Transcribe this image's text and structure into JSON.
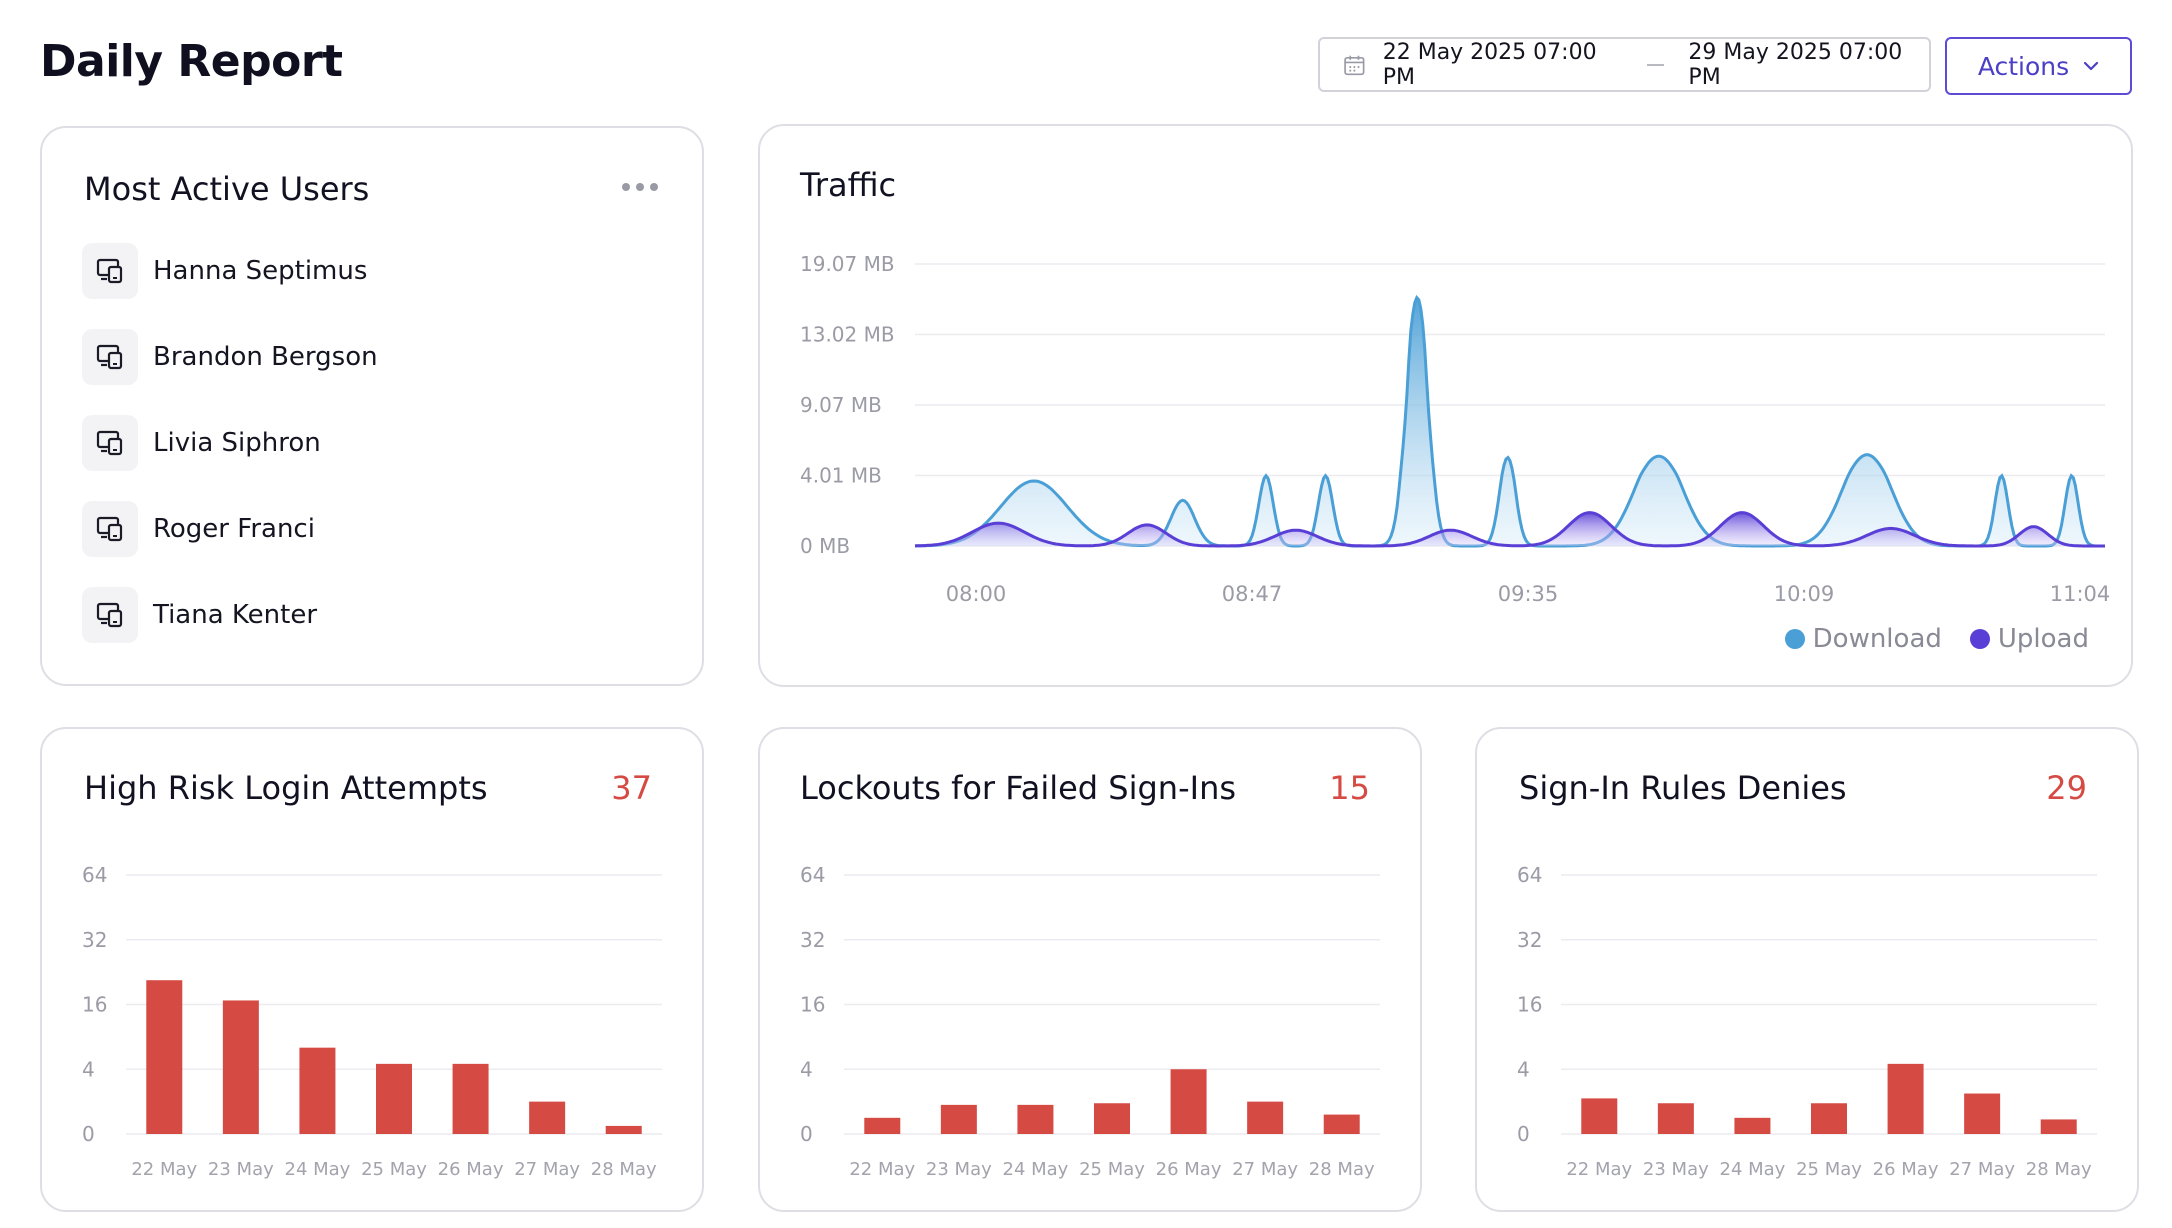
{
  "header": {
    "title": "Daily Report",
    "date_from": "22 May 2025 07:00 PM",
    "date_to": "29 May 2025 07:00 PM",
    "actions_label": "Actions"
  },
  "colors": {
    "accent": "#5b4bd6",
    "download": "#4a9fd6",
    "upload": "#5a3fd6",
    "bar": "#d64a44",
    "count": "#d64a44"
  },
  "most_active_users": {
    "title": "Most Active Users",
    "users": [
      "Hanna Septimus",
      "Brandon Bergson",
      "Livia Siphron",
      "Roger Franci",
      "Tiana Kenter"
    ]
  },
  "traffic": {
    "title": "Traffic",
    "legend": [
      "Download",
      "Upload"
    ]
  },
  "cards": {
    "high_risk": {
      "title": "High Risk Login Attempts",
      "count": "37"
    },
    "lockouts": {
      "title": "Lockouts for Failed Sign-Ins",
      "count": "15"
    },
    "rule_denies": {
      "title": "Sign-In Rules Denies",
      "count": "29"
    }
  },
  "chart_data": [
    {
      "id": "traffic",
      "type": "area",
      "title": "Traffic",
      "y_ticks": [
        "0 MB",
        "4.01 MB",
        "9.07 MB",
        "13.02 MB",
        "19.07 MB"
      ],
      "x_ticks": [
        "08:00",
        "08:47",
        "09:35",
        "10:09",
        "11:04"
      ],
      "legend": "bottom-right",
      "series": [
        {
          "name": "Download",
          "peaks": [
            {
              "x": 0.1,
              "height": 3.7,
              "width": 0.028
            },
            {
              "x": 0.225,
              "height": 2.6,
              "width": 0.01
            },
            {
              "x": 0.295,
              "height": 4.0,
              "width": 0.006
            },
            {
              "x": 0.345,
              "height": 4.0,
              "width": 0.006
            },
            {
              "x": 0.422,
              "height": 16.2,
              "width": 0.0085
            },
            {
              "x": 0.498,
              "height": 5.3,
              "width": 0.0065
            },
            {
              "x": 0.625,
              "height": 5.4,
              "width": 0.02
            },
            {
              "x": 0.8,
              "height": 5.5,
              "width": 0.02
            },
            {
              "x": 0.913,
              "height": 4.0,
              "width": 0.0055
            },
            {
              "x": 0.972,
              "height": 4.0,
              "width": 0.0055
            }
          ]
        },
        {
          "name": "Upload",
          "peaks": [
            {
              "x": 0.07,
              "height": 1.3,
              "width": 0.022
            },
            {
              "x": 0.195,
              "height": 1.2,
              "width": 0.016
            },
            {
              "x": 0.32,
              "height": 0.9,
              "width": 0.018
            },
            {
              "x": 0.45,
              "height": 0.9,
              "width": 0.018
            },
            {
              "x": 0.567,
              "height": 1.9,
              "width": 0.018
            },
            {
              "x": 0.695,
              "height": 1.9,
              "width": 0.018
            },
            {
              "x": 0.82,
              "height": 1.0,
              "width": 0.02
            },
            {
              "x": 0.94,
              "height": 1.1,
              "width": 0.012
            }
          ]
        }
      ]
    },
    {
      "id": "high_risk",
      "type": "bar",
      "title": "High Risk Login Attempts",
      "categories": [
        "22 May",
        "23 May",
        "24 May",
        "25 May",
        "26 May",
        "27 May",
        "28 May"
      ],
      "y_ticks": [
        "0",
        "4",
        "16",
        "32",
        "64"
      ],
      "values": [
        22,
        17,
        8,
        5,
        5,
        2,
        0.5
      ]
    },
    {
      "id": "lockouts",
      "type": "bar",
      "title": "Lockouts for Failed Sign-Ins",
      "categories": [
        "22 May",
        "23 May",
        "24 May",
        "25 May",
        "26 May",
        "27 May",
        "28 May"
      ],
      "y_ticks": [
        "0",
        "4",
        "16",
        "32",
        "64"
      ],
      "values": [
        1,
        1.8,
        1.8,
        1.9,
        4,
        2,
        1.2
      ]
    },
    {
      "id": "rule_denies",
      "type": "bar",
      "title": "Sign-In Rules Denies",
      "categories": [
        "22 May",
        "23 May",
        "24 May",
        "25 May",
        "26 May",
        "27 May",
        "28 May"
      ],
      "y_ticks": [
        "0",
        "4",
        "16",
        "32",
        "64"
      ],
      "values": [
        2.2,
        1.9,
        1,
        1.9,
        5,
        2.5,
        0.9
      ]
    }
  ]
}
